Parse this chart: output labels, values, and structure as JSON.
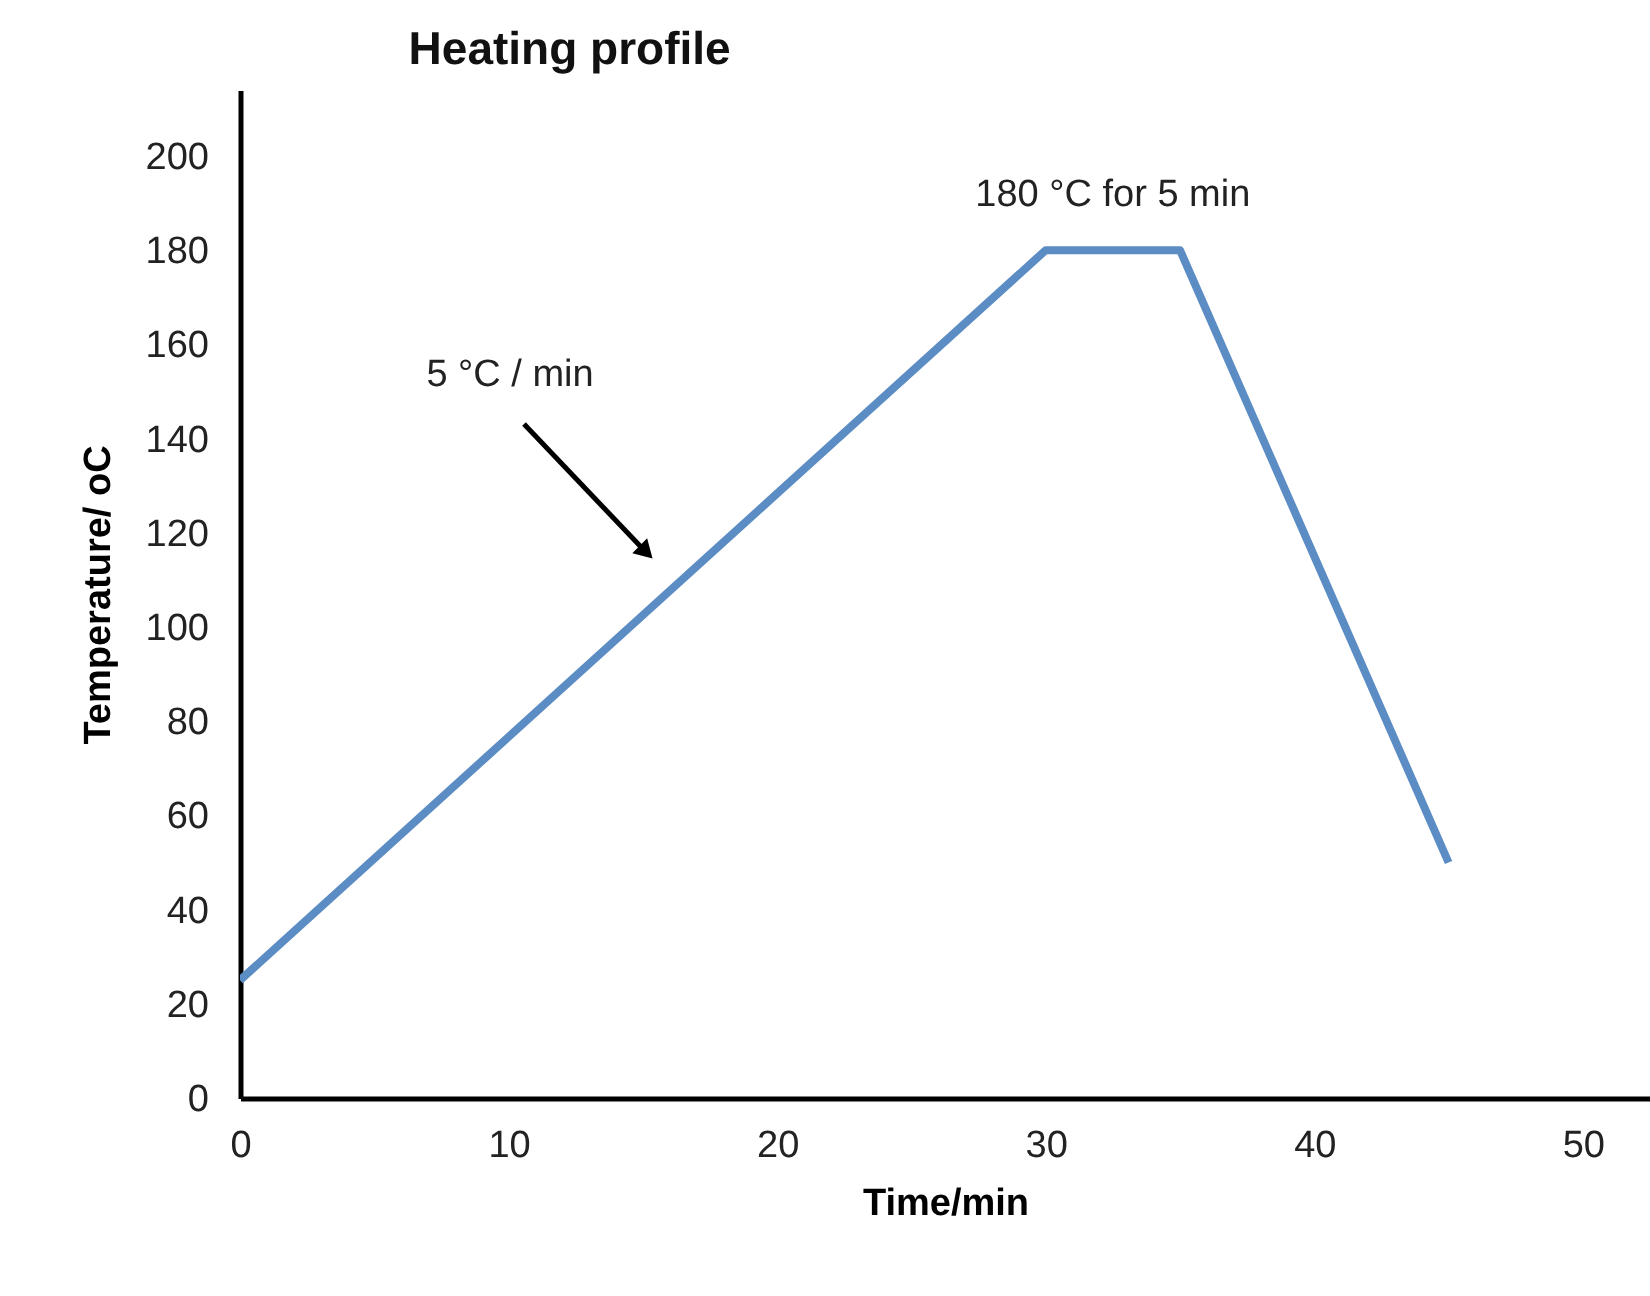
{
  "chart_data": {
    "type": "line",
    "title": "Heating profile",
    "xlabel": "Time/min",
    "ylabel": "Temperature/ oC",
    "x": [
      0,
      30,
      35,
      45
    ],
    "series": [
      {
        "color": "#5b8cc4",
        "values": [
          25,
          180,
          180,
          50
        ]
      }
    ],
    "xlim": [
      0,
      52.5
    ],
    "ylim": [
      0,
      214
    ],
    "xticks": [
      0,
      10,
      20,
      30,
      40,
      50
    ],
    "yticks": [
      0,
      20,
      40,
      60,
      80,
      100,
      120,
      140,
      160,
      180,
      200
    ],
    "grid": false,
    "legend": false,
    "marker": "none",
    "line_style": "solid",
    "annotations": [
      "5 °C / min",
      {
        "text": "180 °C for 5 min",
        "x": 32.5,
        "y": 180
      }
    ]
  }
}
